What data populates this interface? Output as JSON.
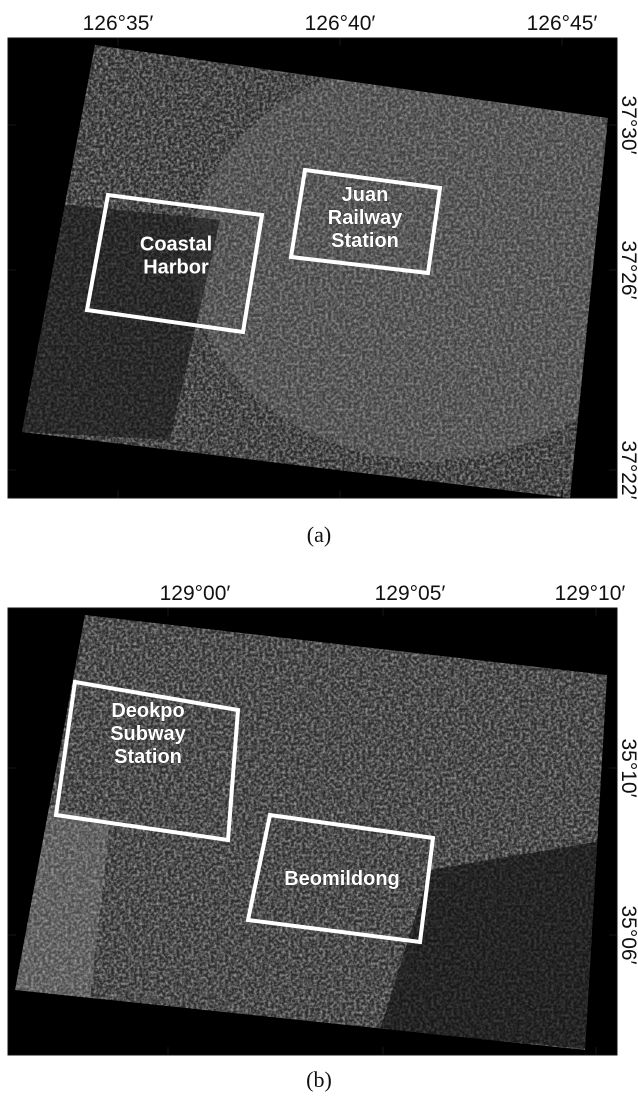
{
  "panels": [
    {
      "caption": "(a)",
      "x_labels": [
        "126°35′",
        "126°40′",
        "126°45′"
      ],
      "y_labels": [
        "37°30′",
        "37°26′",
        "37°22′"
      ],
      "regions": [
        {
          "label": "Coastal Harbor"
        },
        {
          "label": "Juan Railway Station"
        }
      ]
    },
    {
      "caption": "(b)",
      "x_labels": [
        "129°00′",
        "129°05′",
        "129°10′"
      ],
      "y_labels": [
        "35°10′",
        "35°06′"
      ],
      "regions": [
        {
          "label": "Deokpo Subway Station"
        },
        {
          "label": "Beomildong"
        }
      ]
    }
  ]
}
